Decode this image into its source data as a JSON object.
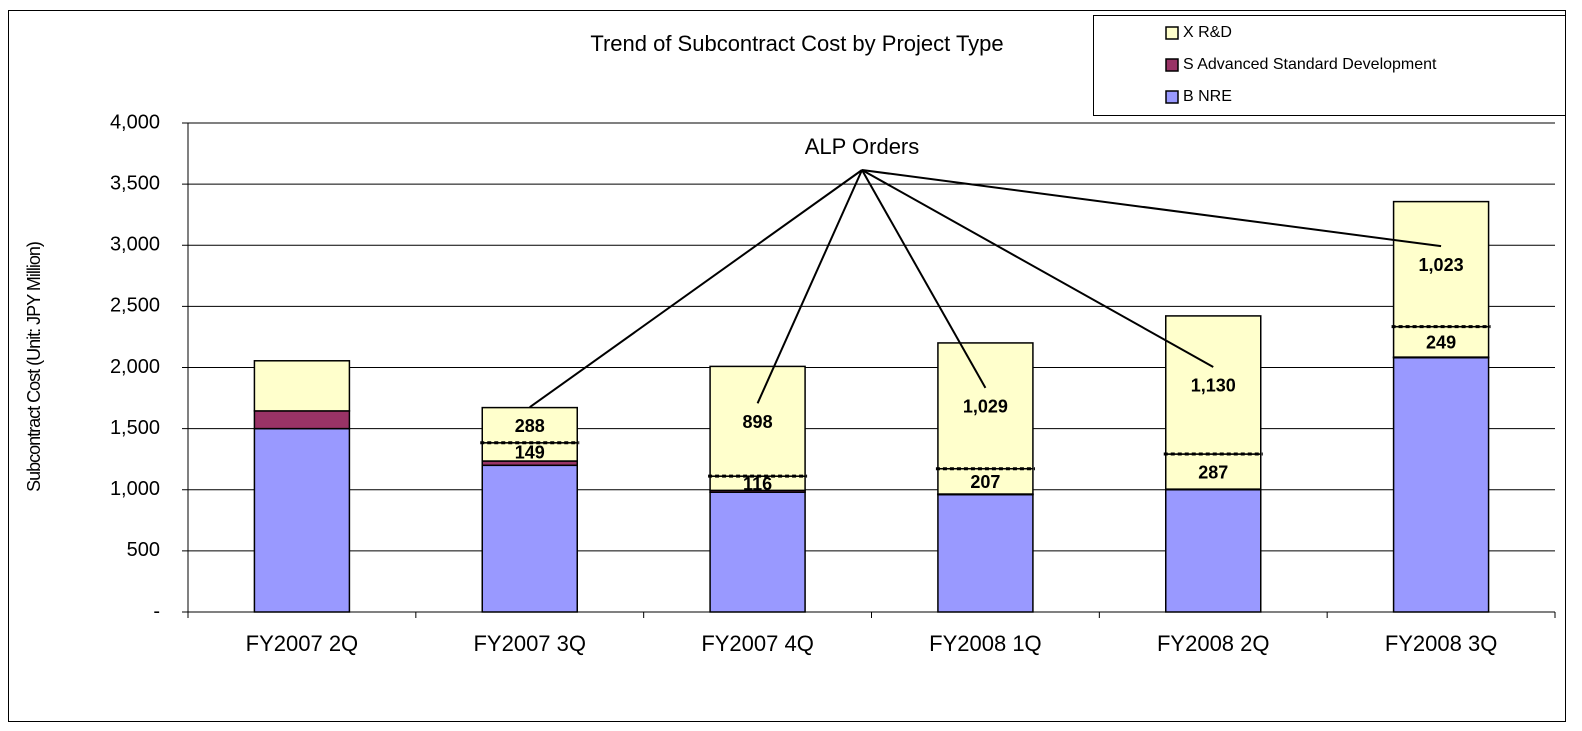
{
  "chart_data": {
    "type": "stacked_bar",
    "title": "Trend of Subcontract Cost by Project Type",
    "y_label": "Subcontract Cost (Unit: JPY Million)",
    "annotation": "ALP Orders",
    "categories": [
      "FY2007 2Q",
      "FY2007 3Q",
      "FY2007 4Q",
      "FY2008 1Q",
      "FY2008 2Q",
      "FY2008 3Q"
    ],
    "series": [
      {
        "name": "B NRE",
        "color": "#9999ff",
        "values": [
          1500,
          1200,
          980,
          960,
          1000,
          2080
        ]
      },
      {
        "name": "S Advanced Standard Development",
        "color": "#993366",
        "values": [
          145,
          35,
          15,
          5,
          5,
          5
        ]
      },
      {
        "name": "X R&D",
        "color": "#ffffcc",
        "values": [
          410,
          149,
          116,
          207,
          287,
          249
        ],
        "alp_values": [
          null,
          288,
          898,
          1029,
          1130,
          1023
        ],
        "value_labels": [
          null,
          "149",
          "116",
          "207",
          "287",
          "249"
        ],
        "alp_value_labels": [
          null,
          "288",
          "898",
          "1,029",
          "1,130",
          "1,023"
        ]
      }
    ],
    "ylim": [
      0,
      4000
    ],
    "yticks": [
      {
        "value": 0,
        "label": "-"
      },
      500,
      {
        "value": 1000,
        "label": "1,000"
      },
      {
        "value": 1500,
        "label": "1,500"
      },
      {
        "value": 2000,
        "label": "2,000"
      },
      {
        "value": 2500,
        "label": "2,500"
      },
      {
        "value": 3000,
        "label": "3,000"
      },
      {
        "value": 3500,
        "label": "3,500"
      },
      {
        "value": 4000,
        "label": "4,000"
      }
    ],
    "grid": true
  }
}
